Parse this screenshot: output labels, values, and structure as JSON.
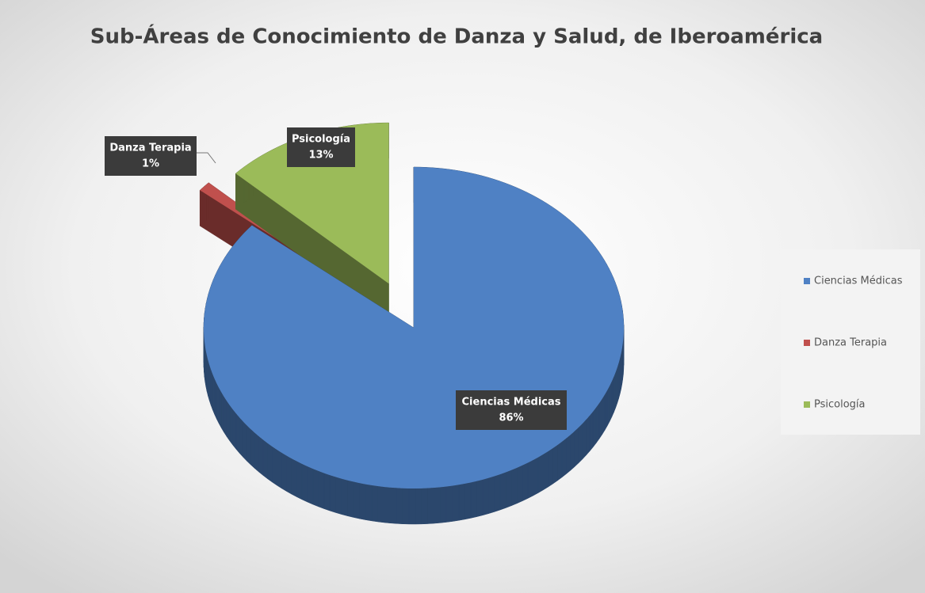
{
  "chart_data": {
    "type": "pie",
    "title": "Sub-Áreas de Conocimiento de Danza y Salud, de Iberoamérica",
    "categories": [
      "Ciencias Médicas",
      "Danza Terapia",
      "Psicología"
    ],
    "values": [
      86,
      1,
      13
    ],
    "value_labels": [
      "86%",
      "1%",
      "13%"
    ],
    "colors": [
      "#4f81c4",
      "#c0504d",
      "#9bbb59"
    ],
    "legend": "right"
  }
}
